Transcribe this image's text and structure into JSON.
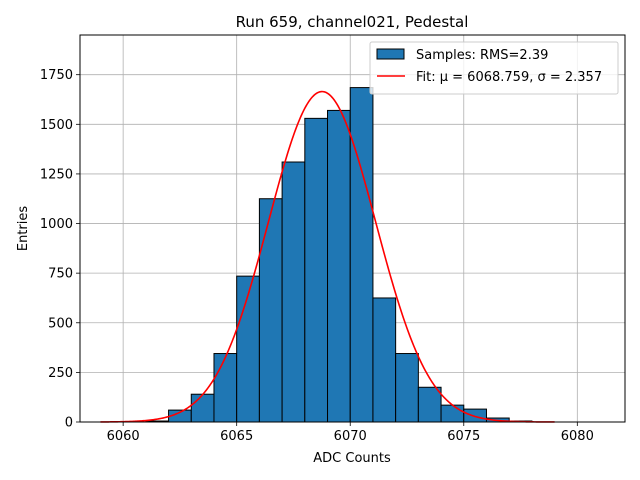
{
  "chart_data": {
    "type": "bar",
    "title": "Run 659, channel021, Pedestal",
    "xlabel": "ADC Counts",
    "ylabel": "Entries",
    "xlim": [
      5858.1,
      6082.1
    ],
    "ylim": [
      0,
      1950
    ],
    "xlim_visible": [
      6058.1,
      6082.1
    ],
    "xticks": [
      6060,
      6065,
      6070,
      6075,
      6080
    ],
    "yticks": [
      0,
      250,
      500,
      750,
      1000,
      1250,
      1500,
      1750
    ],
    "grid": true,
    "legend_position": "top-right",
    "histogram": {
      "name": "Samples: RMS=2.39",
      "color": "#1f77b4",
      "bin_width": 1,
      "bins": [
        {
          "start": 6061,
          "count": 5
        },
        {
          "start": 6062,
          "count": 60
        },
        {
          "start": 6063,
          "count": 140
        },
        {
          "start": 6064,
          "count": 345
        },
        {
          "start": 6065,
          "count": 735
        },
        {
          "start": 6066,
          "count": 1125
        },
        {
          "start": 6067,
          "count": 1310
        },
        {
          "start": 6068,
          "count": 1530
        },
        {
          "start": 6069,
          "count": 1570
        },
        {
          "start": 6070,
          "count": 1685
        },
        {
          "start": 6071,
          "count": 625
        },
        {
          "start": 6072,
          "count": 345
        },
        {
          "start": 6073,
          "count": 175
        },
        {
          "start": 6074,
          "count": 85
        },
        {
          "start": 6075,
          "count": 65
        },
        {
          "start": 6076,
          "count": 20
        },
        {
          "start": 6077,
          "count": 5
        }
      ]
    },
    "fit": {
      "name": "Fit: μ = 6068.759, σ = 2.357",
      "color": "#ff0000",
      "mu": 6068.759,
      "sigma": 2.357,
      "amplitude": 1665,
      "x_range": [
        6059,
        6079
      ]
    }
  }
}
